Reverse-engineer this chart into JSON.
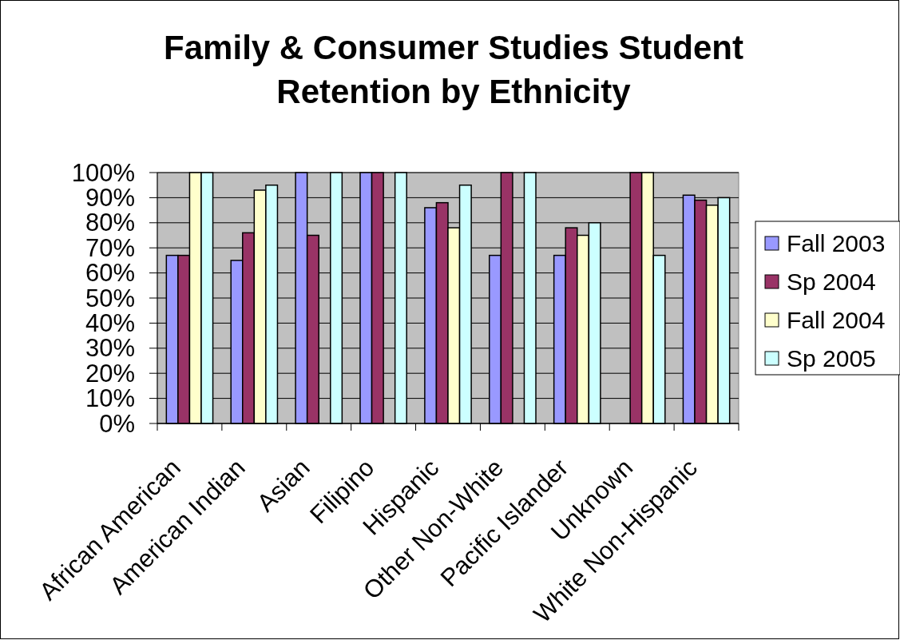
{
  "chart_data": {
    "type": "bar",
    "title": "Family & Consumer Studies Student Retention by Ethnicity",
    "categories": [
      "African American",
      "American Indian",
      "Asian",
      "Filipino",
      "Hispanic",
      "Other Non-White",
      "Pacific Islander",
      "Unknown",
      "White Non-Hispanic"
    ],
    "series": [
      {
        "name": "Fall 2003",
        "color": "#9999ff",
        "values": [
          67,
          65,
          100,
          100,
          86,
          67,
          67,
          null,
          91
        ]
      },
      {
        "name": "Sp 2004",
        "color": "#993366",
        "values": [
          67,
          76,
          75,
          100,
          88,
          100,
          78,
          100,
          89
        ]
      },
      {
        "name": "Fall 2004",
        "color": "#ffffcc",
        "values": [
          100,
          93,
          null,
          null,
          78,
          null,
          75,
          100,
          87
        ]
      },
      {
        "name": "Sp 2005",
        "color": "#ccffff",
        "values": [
          100,
          95,
          100,
          100,
          95,
          100,
          80,
          67,
          90
        ]
      }
    ],
    "ylim": [
      0,
      100
    ],
    "yticks": [
      {
        "value": 0,
        "label": "0%"
      },
      {
        "value": 10,
        "label": "10%"
      },
      {
        "value": 20,
        "label": "20%"
      },
      {
        "value": 30,
        "label": "30%"
      },
      {
        "value": 40,
        "label": "40%"
      },
      {
        "value": 50,
        "label": "50%"
      },
      {
        "value": 60,
        "label": "60%"
      },
      {
        "value": 70,
        "label": "70%"
      },
      {
        "value": 80,
        "label": "80%"
      },
      {
        "value": 90,
        "label": "90%"
      },
      {
        "value": 100,
        "label": "100%"
      }
    ],
    "grid": "y",
    "legend": "right"
  }
}
